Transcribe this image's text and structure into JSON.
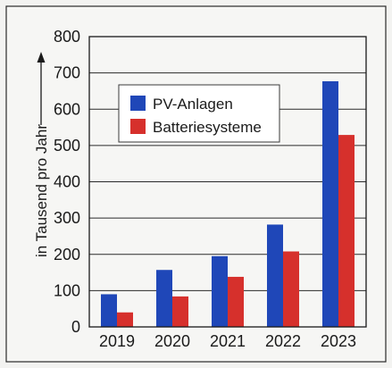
{
  "chart_data": {
    "type": "bar",
    "categories": [
      "2019",
      "2020",
      "2021",
      "2022",
      "2023"
    ],
    "series": [
      {
        "name": "PV-Anlagen",
        "values": [
          90,
          157,
          195,
          282,
          677
        ],
        "color": "#1f47b8"
      },
      {
        "name": "Batteriesysteme",
        "values": [
          40,
          84,
          138,
          208,
          529
        ],
        "color": "#d6302c"
      }
    ],
    "ylabel": "in Tausend pro Jahr",
    "ylim": [
      0,
      800
    ],
    "yticks": [
      0,
      100,
      200,
      300,
      400,
      500,
      600,
      700,
      800
    ],
    "grid": true,
    "legend": "top-left"
  }
}
